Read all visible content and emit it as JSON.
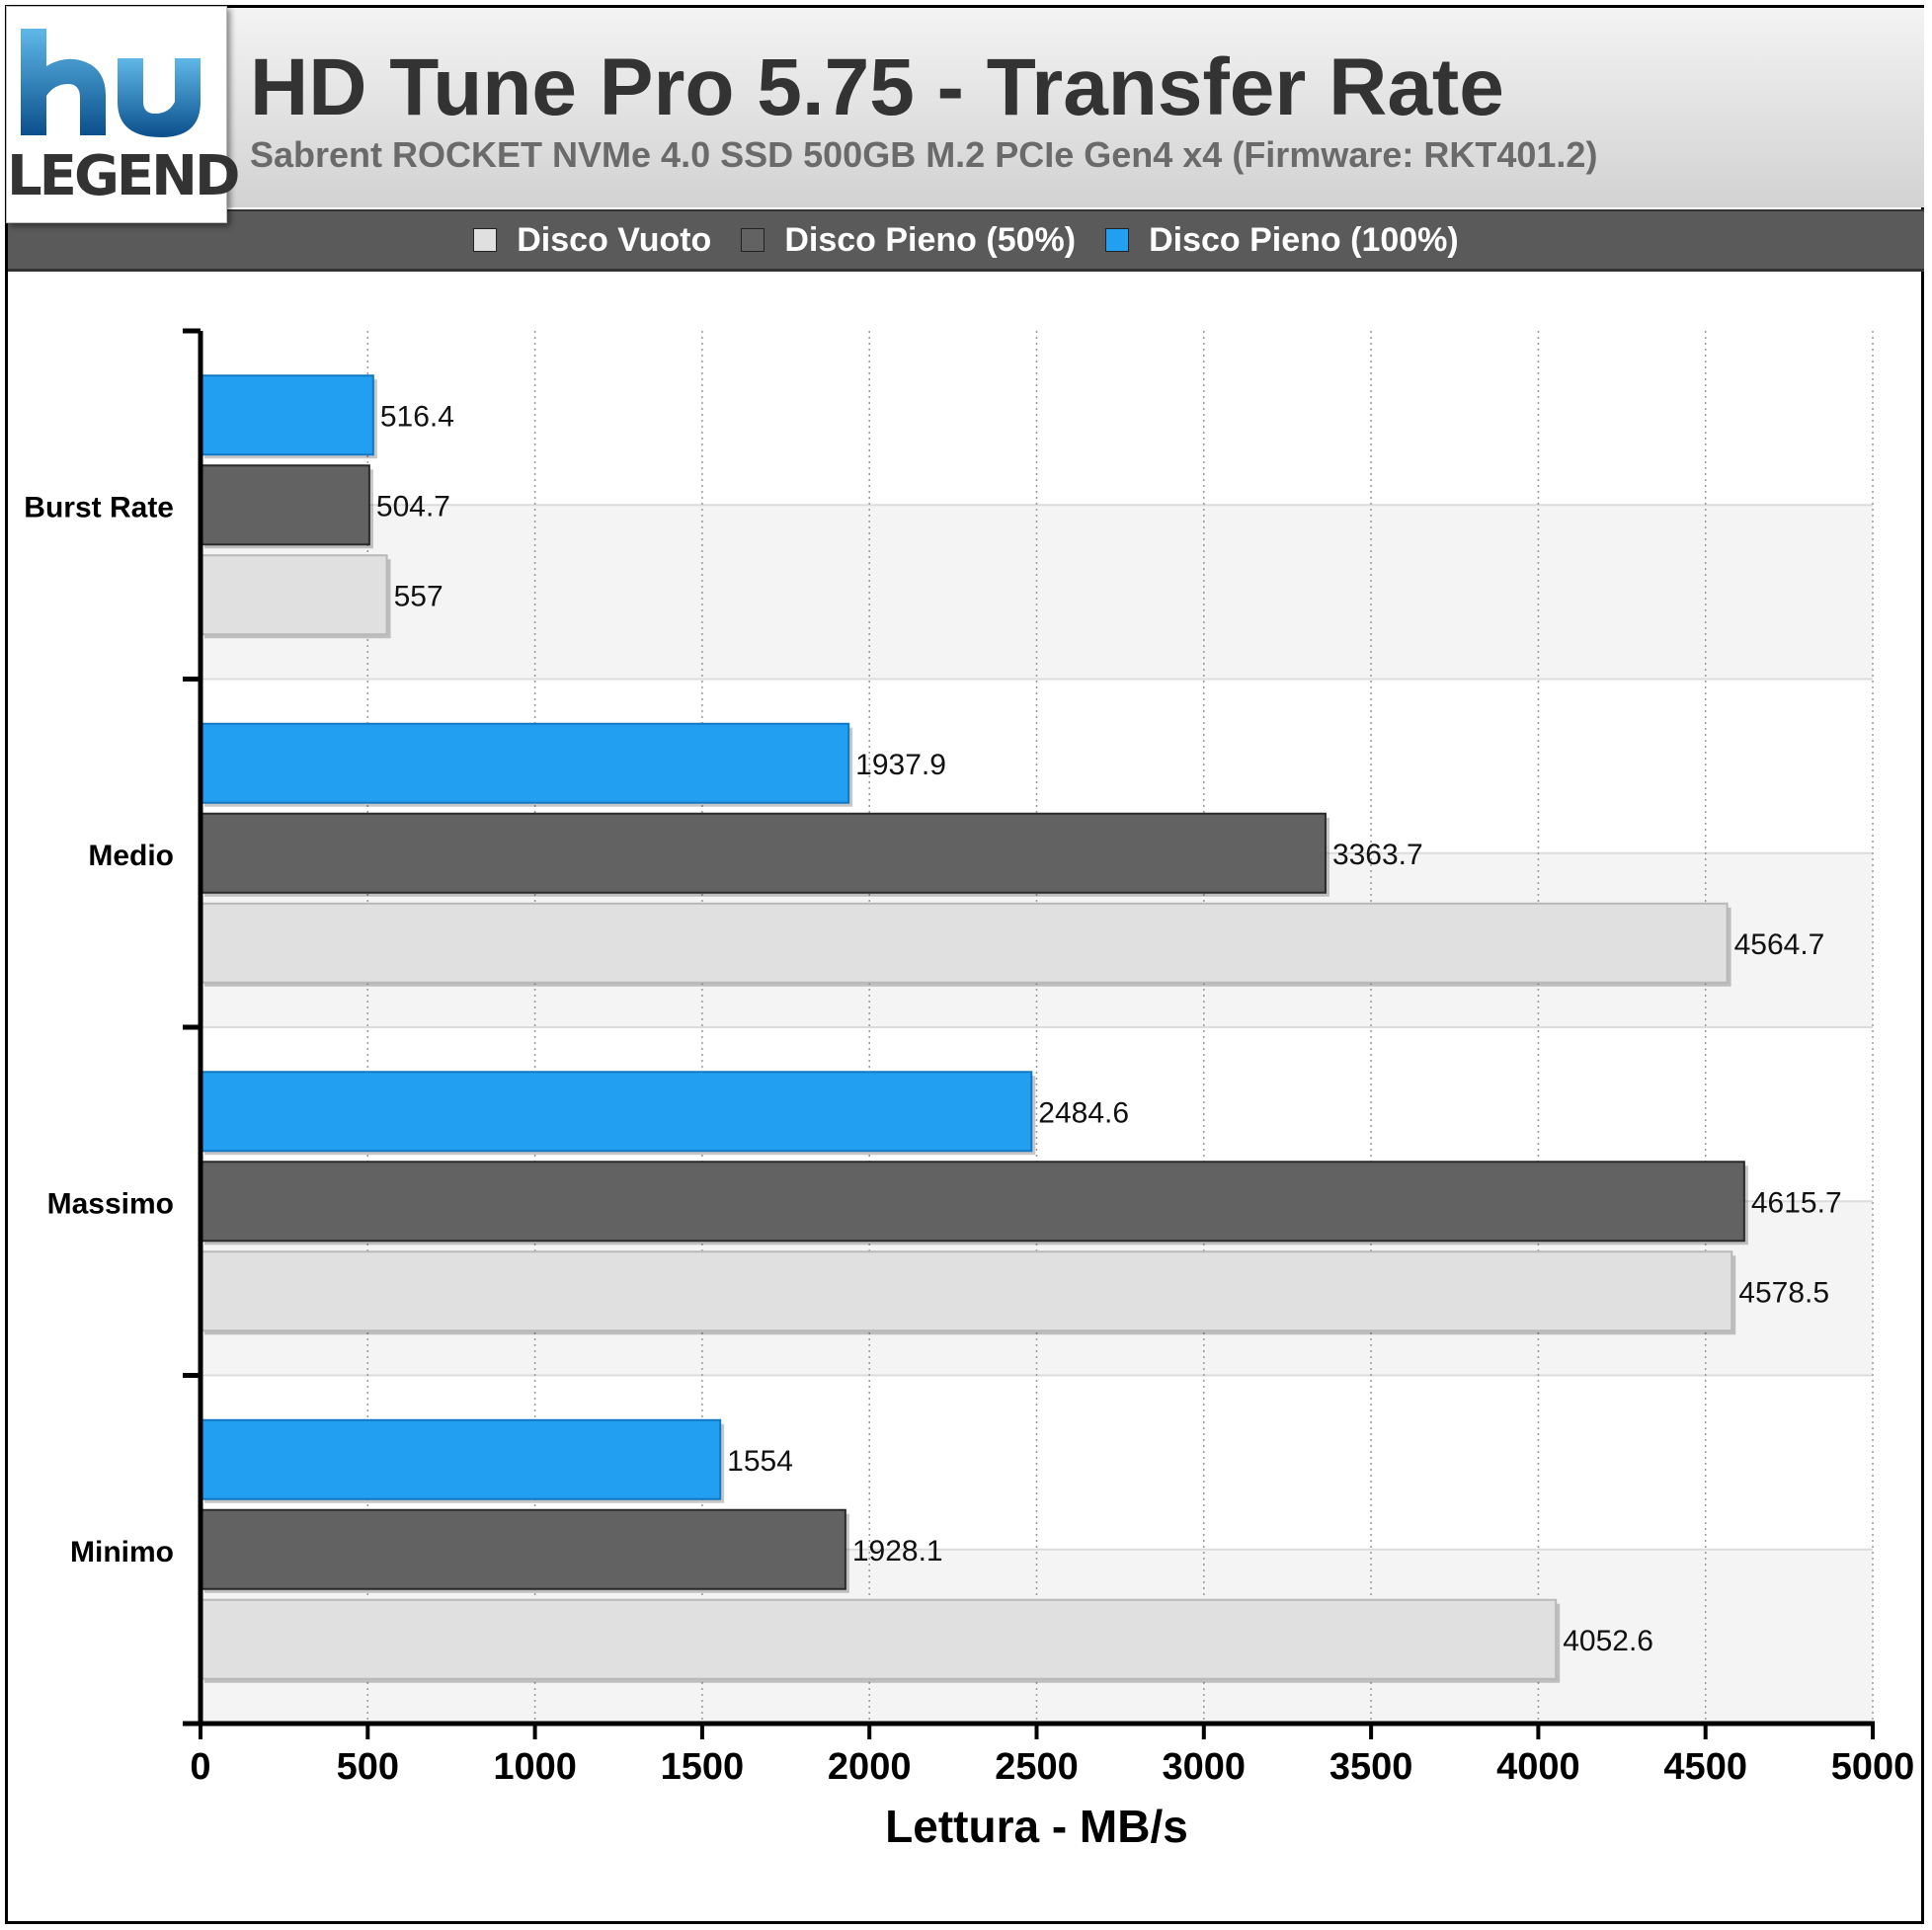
{
  "header": {
    "logo_text": "LEGEND",
    "title": "HD Tune Pro 5.75 - Transfer Rate",
    "subtitle": "Sabrent ROCKET NVMe 4.0 SSD 500GB M.2 PCIe Gen4 x4 (Firmware: RKT401.2)"
  },
  "legend": [
    {
      "label": "Disco Vuoto",
      "color": "#e0e0e0"
    },
    {
      "label": "Disco Pieno (50%)",
      "color": "#626262"
    },
    {
      "label": "Disco Pieno (100%)",
      "color": "#229ff0"
    }
  ],
  "chart_data": {
    "type": "bar",
    "orientation": "horizontal",
    "categories": [
      "Burst Rate",
      "Medio",
      "Massimo",
      "Minimo"
    ],
    "series": [
      {
        "name": "Disco Pieno (100%)",
        "color": "#229ff0",
        "values": [
          516.4,
          1937.9,
          2484.6,
          1554
        ]
      },
      {
        "name": "Disco Pieno (50%)",
        "color": "#626262",
        "values": [
          504.7,
          3363.7,
          4615.7,
          1928.1
        ]
      },
      {
        "name": "Disco Vuoto",
        "color": "#e0e0e0",
        "values": [
          557,
          4564.7,
          4578.5,
          4052.6
        ]
      }
    ],
    "value_labels": [
      [
        "516.4",
        "504.7",
        "557"
      ],
      [
        "1937.9",
        "3363.7",
        "4564.7"
      ],
      [
        "2484.6",
        "4615.7",
        "4578.5"
      ],
      [
        "1554",
        "1928.1",
        "4052.6"
      ]
    ],
    "xlabel": "Lettura - MB/s",
    "xlim": [
      0,
      5000
    ],
    "xticks": [
      0,
      500,
      1000,
      1500,
      2000,
      2500,
      3000,
      3500,
      4000,
      4500,
      5000
    ],
    "grid": "vertical dotted",
    "legend_position": "top"
  }
}
